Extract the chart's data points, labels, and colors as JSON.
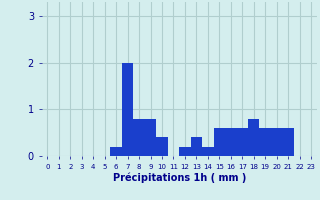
{
  "hours": [
    0,
    1,
    2,
    3,
    4,
    5,
    6,
    7,
    8,
    9,
    10,
    11,
    12,
    13,
    14,
    15,
    16,
    17,
    18,
    19,
    20,
    21,
    22,
    23
  ],
  "values": [
    0,
    0,
    0,
    0,
    0,
    0,
    0.2,
    2.0,
    0.8,
    0.8,
    0.4,
    0,
    0.2,
    0.4,
    0.2,
    0.6,
    0.6,
    0.6,
    0.8,
    0.6,
    0.6,
    0.6,
    0,
    0
  ],
  "bar_color": "#1a3fcc",
  "background_color": "#d4eeee",
  "grid_color": "#b0cece",
  "xlabel": "Précipitations 1h ( mm )",
  "xlabel_color": "#00008b",
  "tick_color": "#00008b",
  "ylim": [
    0,
    3.3
  ],
  "yticks": [
    0,
    1,
    2,
    3
  ],
  "xlim": [
    -0.5,
    23.5
  ]
}
